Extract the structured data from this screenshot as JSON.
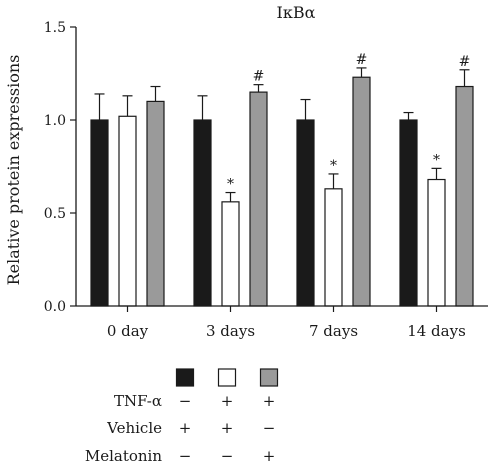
{
  "chart_data": {
    "type": "bar",
    "title": "IκBα",
    "ylabel": "Relative protein expressions",
    "ylim": [
      0,
      1.5
    ],
    "yticks": [
      "0.0",
      "0.5",
      "1.0",
      "1.5"
    ],
    "categories": [
      "0 day",
      "3 days",
      "7 days",
      "14 days"
    ],
    "series": [
      {
        "key": "vehicle",
        "color": "#1a1a1a",
        "values": [
          1.0,
          1.0,
          1.0,
          1.0
        ],
        "errors": [
          0.14,
          0.13,
          0.11,
          0.04
        ],
        "marks": [
          "",
          "",
          "",
          ""
        ]
      },
      {
        "key": "tnf",
        "color": "#ffffff",
        "values": [
          1.02,
          0.56,
          0.63,
          0.68
        ],
        "errors": [
          0.11,
          0.05,
          0.08,
          0.06
        ],
        "marks": [
          "",
          "*",
          "*",
          "*"
        ]
      },
      {
        "key": "melatonin",
        "color": "#9a9a9a",
        "values": [
          1.1,
          1.15,
          1.23,
          1.18
        ],
        "errors": [
          0.08,
          0.04,
          0.05,
          0.09
        ],
        "marks": [
          "",
          "#",
          "#",
          "#"
        ]
      }
    ],
    "legend": {
      "rows": [
        {
          "label": "TNF-α",
          "signs": [
            "−",
            "+",
            "+"
          ]
        },
        {
          "label": "Vehicle",
          "signs": [
            "+",
            "+",
            "−"
          ]
        },
        {
          "label": "Melatonin",
          "signs": [
            "−",
            "−",
            "+"
          ]
        }
      ]
    }
  }
}
